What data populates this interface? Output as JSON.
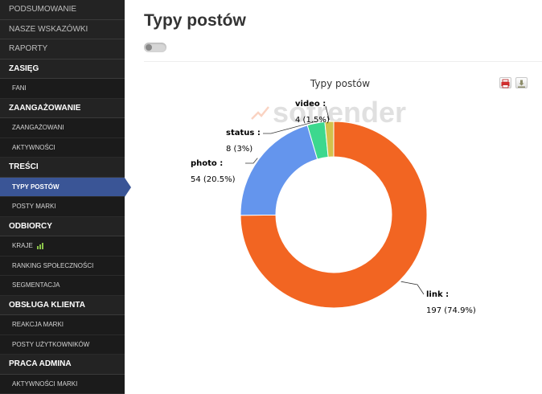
{
  "sidebar": {
    "items": [
      {
        "label": "PODSUMOWANIE",
        "kind": "major dim"
      },
      {
        "label": "NASZE WSKAZÓWKI",
        "kind": "major dim"
      },
      {
        "label": "RAPORTY",
        "kind": "major dim"
      },
      {
        "label": "ZASIĘG",
        "kind": "major"
      },
      {
        "label": "FANI",
        "kind": "sub"
      },
      {
        "label": "ZAANGAŻOWANIE",
        "kind": "major"
      },
      {
        "label": "ZAANGAŻOWANI",
        "kind": "sub"
      },
      {
        "label": "AKTYWNOŚCI",
        "kind": "sub"
      },
      {
        "label": "TREŚCI",
        "kind": "major"
      },
      {
        "label": "TYPY POSTÓW",
        "kind": "sub active"
      },
      {
        "label": "POSTY MARKI",
        "kind": "sub"
      },
      {
        "label": "ODBIORCY",
        "kind": "major"
      },
      {
        "label": "KRAJE",
        "kind": "sub",
        "icon": "bar-chart-icon"
      },
      {
        "label": "RANKING SPOŁECZNOŚCI",
        "kind": "sub"
      },
      {
        "label": "SEGMENTACJA",
        "kind": "sub"
      },
      {
        "label": "OBSŁUGA KLIENTA",
        "kind": "major"
      },
      {
        "label": "REAKCJA MARKI",
        "kind": "sub"
      },
      {
        "label": "POSTY UŻYTKOWNIKÓW",
        "kind": "sub"
      },
      {
        "label": "PRACA ADMINA",
        "kind": "major"
      },
      {
        "label": "AKTYWNOŚCI MARKI",
        "kind": "sub"
      }
    ]
  },
  "main": {
    "title": "Typy postów",
    "watermark": "sotrender"
  },
  "toolbar": {
    "print_icon": "printer-icon",
    "download_icon": "download-icon"
  },
  "chart_data": {
    "type": "pie",
    "title": "Typy postów",
    "donut": true,
    "slices": [
      {
        "name": "link",
        "value": 197,
        "percent": "74.9%",
        "color": "#f26522"
      },
      {
        "name": "photo",
        "value": 54,
        "percent": "20.5%",
        "color": "#6495ed"
      },
      {
        "name": "status",
        "value": 8,
        "percent": "3%",
        "color": "#3cd88e"
      },
      {
        "name": "video",
        "value": 4,
        "percent": "1.5%",
        "color": "#d2c24c"
      }
    ]
  }
}
